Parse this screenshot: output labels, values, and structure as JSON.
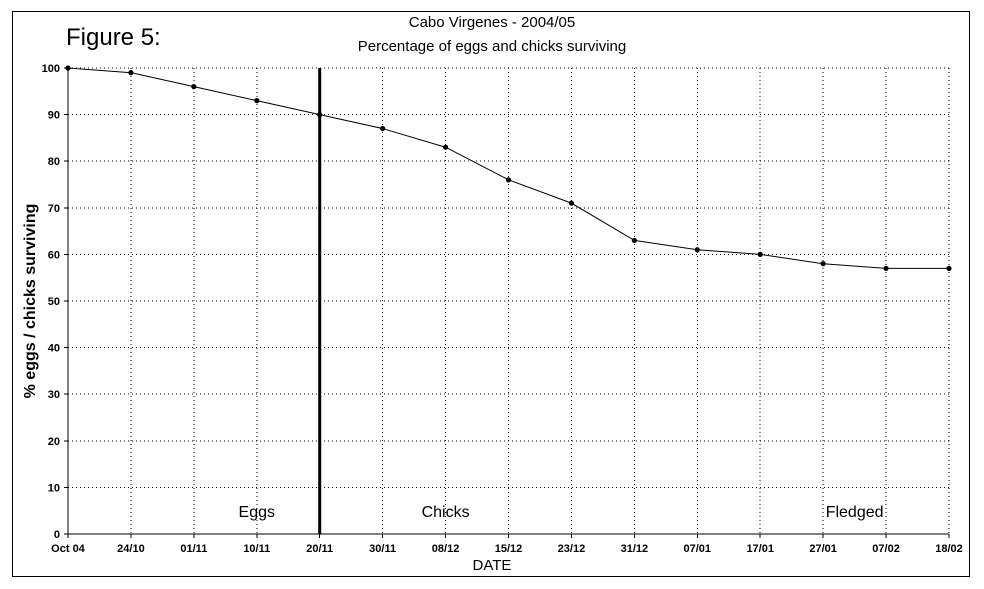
{
  "figure_label": "Figure 5:",
  "chart_data": {
    "type": "line",
    "title": "Cabo Virgenes - 2004/05",
    "subtitle": "Percentage of eggs and chicks surviving",
    "xlabel": "DATE",
    "ylabel": "% eggs / chicks surviving",
    "ylim": [
      0,
      100
    ],
    "yticks": [
      0,
      10,
      20,
      30,
      40,
      50,
      60,
      70,
      80,
      90,
      100
    ],
    "categories": [
      "Oct 04",
      "24/10",
      "01/11",
      "10/11",
      "20/11",
      "30/11",
      "08/12",
      "15/12",
      "23/12",
      "31/12",
      "07/01",
      "17/01",
      "27/01",
      "07/02",
      "18/02"
    ],
    "values": [
      100,
      99,
      96,
      93,
      90,
      87,
      83,
      76,
      71,
      63,
      61,
      60,
      58,
      57,
      57
    ],
    "grid": true,
    "divider_category": "20/11",
    "region_labels": [
      {
        "text": "Eggs",
        "at": 3
      },
      {
        "text": "Chicks",
        "at": 6
      },
      {
        "text": "Fledged",
        "at": 12.5
      }
    ]
  }
}
